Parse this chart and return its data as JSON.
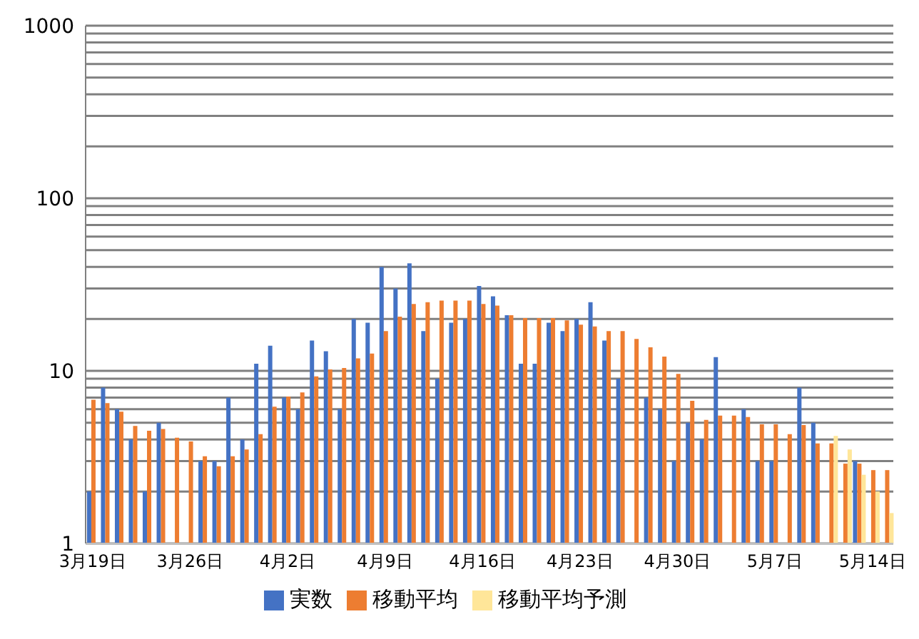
{
  "chart_data": {
    "type": "bar",
    "categories": [
      "3月19日",
      null,
      null,
      null,
      null,
      null,
      null,
      "3月26日",
      null,
      null,
      null,
      null,
      null,
      null,
      "4月2日",
      null,
      null,
      null,
      null,
      null,
      null,
      "4月9日",
      null,
      null,
      null,
      null,
      null,
      null,
      "4月16日",
      null,
      null,
      null,
      null,
      null,
      null,
      "4月23日",
      null,
      null,
      null,
      null,
      null,
      null,
      "4月30日",
      null,
      null,
      null,
      null,
      null,
      null,
      "5月7日",
      null,
      null,
      null,
      null,
      null,
      null,
      "5月14日",
      null
    ],
    "series": [
      {
        "name": "実数",
        "color": "#4472c4",
        "values": [
          2,
          8,
          6,
          4,
          2,
          5,
          null,
          null,
          3,
          3,
          7,
          4,
          11,
          14,
          7,
          6,
          15,
          13,
          6,
          20,
          19,
          40,
          30,
          42,
          17,
          9,
          19,
          20,
          31,
          27,
          21,
          11,
          11,
          19,
          17,
          20,
          25,
          15,
          9,
          null,
          7,
          6,
          3,
          5,
          4,
          12,
          null,
          6,
          3,
          3,
          null,
          8,
          5,
          null,
          null,
          3,
          null,
          null
        ]
      },
      {
        "name": "移動平均",
        "color": "#ed7d31",
        "values": [
          6.8,
          6.5,
          5.8,
          4.8,
          4.5,
          4.6,
          4.1,
          3.9,
          3.2,
          2.8,
          3.2,
          3.5,
          4.3,
          6.2,
          7.1,
          7.5,
          9.3,
          10.2,
          10.4,
          11.8,
          12.6,
          17,
          20.6,
          24.4,
          25,
          25.5,
          25.5,
          25.5,
          24.4,
          23.9,
          21,
          20.2,
          20.2,
          20.2,
          19.6,
          18.5,
          18.1,
          17,
          17,
          15.3,
          13.7,
          12.1,
          9.6,
          6.7,
          5.2,
          5.5,
          5.5,
          5.4,
          4.9,
          4.9,
          4.3,
          4.85,
          3.8,
          3.8,
          2.9,
          2.9,
          2.66,
          2.66
        ]
      },
      {
        "name": "移動平均予測",
        "color": "#ffe699",
        "values": [
          null,
          null,
          null,
          null,
          null,
          null,
          null,
          null,
          null,
          null,
          null,
          null,
          null,
          null,
          null,
          null,
          null,
          null,
          null,
          null,
          null,
          null,
          null,
          null,
          null,
          null,
          null,
          null,
          null,
          null,
          null,
          null,
          null,
          null,
          null,
          null,
          null,
          null,
          null,
          null,
          null,
          null,
          null,
          null,
          null,
          null,
          null,
          null,
          null,
          null,
          null,
          null,
          null,
          4.2,
          3.5,
          2.5,
          2,
          1.5
        ]
      }
    ],
    "log": "y",
    "ylim": [
      1,
      1000
    ],
    "yticks": [
      1,
      {
        "value": 2,
        "label": null
      },
      {
        "value": 3,
        "label": null
      },
      {
        "value": 4,
        "label": null
      },
      {
        "value": 5,
        "label": null
      },
      {
        "value": 6,
        "label": null
      },
      {
        "value": 7,
        "label": null
      },
      {
        "value": 8,
        "label": null
      },
      {
        "value": 9,
        "label": null
      },
      10,
      {
        "value": 20,
        "label": null
      },
      {
        "value": 30,
        "label": null
      },
      {
        "value": 40,
        "label": null
      },
      {
        "value": 50,
        "label": null
      },
      {
        "value": 60,
        "label": null
      },
      {
        "value": 70,
        "label": null
      },
      {
        "value": 80,
        "label": null
      },
      {
        "value": 90,
        "label": null
      },
      100,
      {
        "value": 200,
        "label": null
      },
      {
        "value": 300,
        "label": null
      },
      {
        "value": 400,
        "label": null
      },
      {
        "value": 500,
        "label": null
      },
      {
        "value": 600,
        "label": null
      },
      {
        "value": 700,
        "label": null
      },
      {
        "value": 800,
        "label": null
      },
      {
        "value": 900,
        "label": null
      },
      1000
    ],
    "grid": "y",
    "legend": "bottom"
  }
}
